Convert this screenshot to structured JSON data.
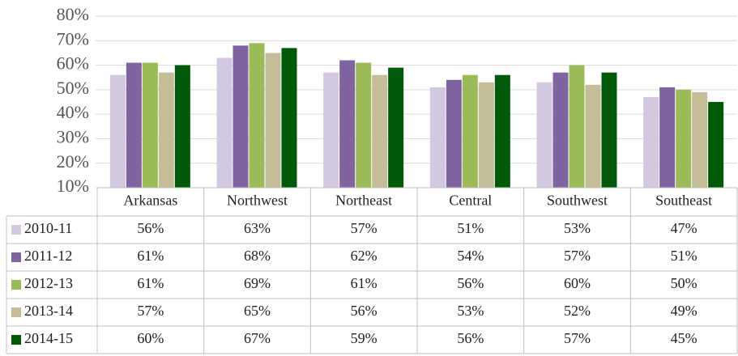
{
  "chart_data": {
    "type": "bar",
    "categories": [
      "Arkansas",
      "Northwest",
      "Northeast",
      "Central",
      "Southwest",
      "Southeast"
    ],
    "series": [
      {
        "name": "2010-11",
        "color": "#d2c8e0",
        "values": [
          56,
          63,
          57,
          51,
          53,
          47
        ],
        "value_labels": [
          "56%",
          "63%",
          "57%",
          "51%",
          "53%",
          "47%"
        ]
      },
      {
        "name": "2011-12",
        "color": "#8064a2",
        "values": [
          61,
          68,
          62,
          54,
          57,
          51
        ],
        "value_labels": [
          "61%",
          "68%",
          "62%",
          "54%",
          "57%",
          "51%"
        ]
      },
      {
        "name": "2012-13",
        "color": "#9bbb59",
        "values": [
          61,
          69,
          61,
          56,
          60,
          50
        ],
        "value_labels": [
          "61%",
          "69%",
          "61%",
          "56%",
          "60%",
          "50%"
        ]
      },
      {
        "name": "2013-14",
        "color": "#c4bd97",
        "values": [
          57,
          65,
          56,
          53,
          52,
          49
        ],
        "value_labels": [
          "57%",
          "65%",
          "56%",
          "53%",
          "52%",
          "49%"
        ]
      },
      {
        "name": "2014-15",
        "color": "#005a0a",
        "values": [
          60,
          67,
          59,
          56,
          57,
          45
        ],
        "value_labels": [
          "60%",
          "67%",
          "59%",
          "56%",
          "57%",
          "45%"
        ]
      }
    ],
    "ylim": [
      10,
      80
    ],
    "yticks": [
      {
        "value": 10,
        "label": "10%"
      },
      {
        "value": 20,
        "label": "20%"
      },
      {
        "value": 30,
        "label": "30%"
      },
      {
        "value": 40,
        "label": "40%"
      },
      {
        "value": 50,
        "label": "50%"
      },
      {
        "value": 60,
        "label": "60%"
      },
      {
        "value": 70,
        "label": "70%"
      },
      {
        "value": 80,
        "label": "80%"
      }
    ],
    "grid": true
  }
}
